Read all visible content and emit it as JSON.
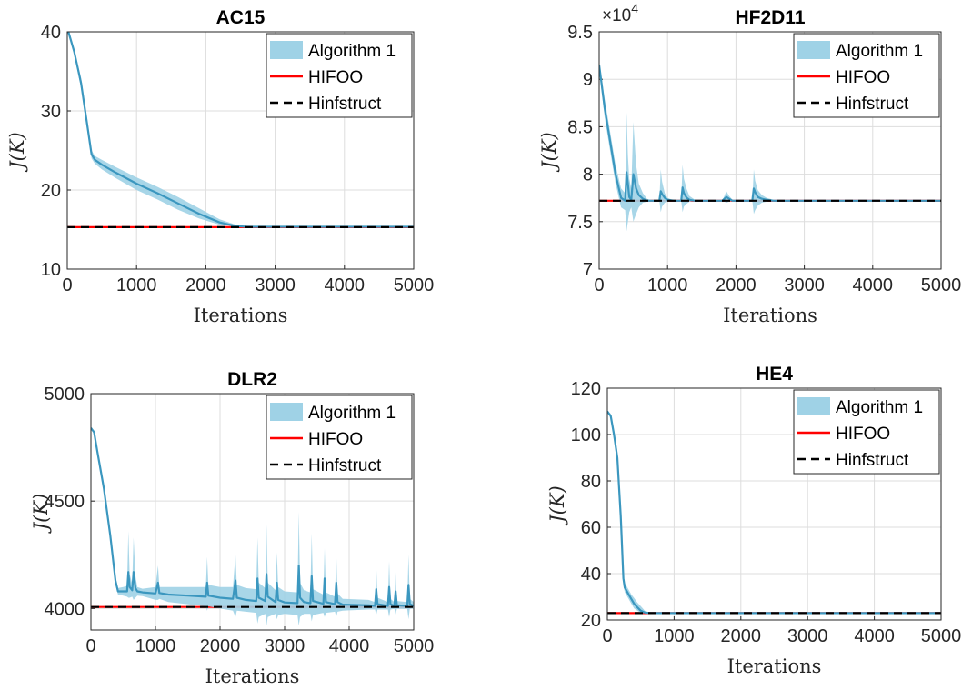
{
  "colors": {
    "band": "#9fd2e6",
    "mean": "#3b97bf",
    "hifoo": "#ff0000",
    "hinfstruct": "#000000",
    "grid": "#dddddd",
    "axis": "#262626"
  },
  "chart_data": [
    {
      "id": "ac15",
      "type": "line",
      "title": "AC15",
      "xlabel": "Iterations",
      "ylabel": "J(K)",
      "xlim": [
        0,
        5000
      ],
      "ylim": [
        10,
        40
      ],
      "xticks": [
        "0",
        "1000",
        "2000",
        "3000",
        "4000",
        "5000"
      ],
      "yticks": [
        "10",
        "20",
        "30",
        "40"
      ],
      "grid": true,
      "legend_position": "top-right",
      "multiplier": "",
      "series": [
        {
          "name": "Algorithm 1",
          "style": "mean-with-band",
          "x": [
            0,
            100,
            200,
            300,
            350,
            400,
            500,
            700,
            1000,
            1300,
            1600,
            1900,
            2200,
            2400,
            2500,
            2600,
            3000,
            4000,
            5000
          ],
          "y": [
            40.5,
            37.5,
            33.5,
            27.5,
            24.5,
            23.8,
            23.2,
            22.2,
            20.8,
            19.6,
            18.3,
            17.0,
            15.9,
            15.5,
            15.4,
            15.35,
            15.35,
            15.35,
            15.35
          ],
          "lower": [
            40.5,
            37.2,
            32.8,
            26.8,
            24.0,
            23.3,
            22.6,
            21.5,
            20.0,
            18.8,
            17.5,
            16.4,
            15.6,
            15.4,
            15.35,
            15.35,
            15.35,
            15.35,
            15.35
          ],
          "upper": [
            40.5,
            37.8,
            34.2,
            28.2,
            25.0,
            24.3,
            23.8,
            22.9,
            21.6,
            20.4,
            19.1,
            17.7,
            16.3,
            15.7,
            15.45,
            15.35,
            15.35,
            15.35,
            15.35
          ]
        },
        {
          "name": "HIFOO",
          "style": "solid",
          "y": 15.3
        },
        {
          "name": "Hinfstruct",
          "style": "dashed",
          "y": 15.3
        }
      ]
    },
    {
      "id": "hf2d11",
      "type": "line",
      "title": "HF2D11",
      "xlabel": "Iterations",
      "ylabel": "J(K)",
      "xlim": [
        0,
        5000
      ],
      "ylim": [
        7,
        9.5
      ],
      "xticks": [
        "0",
        "1000",
        "2000",
        "3000",
        "4000",
        "5000"
      ],
      "yticks": [
        "7",
        "7.5",
        "8",
        "8.5",
        "9",
        "9.5"
      ],
      "grid": true,
      "legend_position": "top-right",
      "multiplier": "×10",
      "multiplier_exp": "4",
      "series": [
        {
          "name": "Algorithm 1",
          "style": "mean-with-band",
          "x": [
            0,
            80,
            160,
            240,
            320,
            380,
            400,
            420,
            440,
            470,
            500,
            540,
            580,
            640,
            700,
            800,
            880,
            900,
            920,
            960,
            1000,
            1100,
            1150,
            1200,
            1220,
            1240,
            1280,
            1320,
            1400,
            1500,
            1800,
            1860,
            1900,
            1950,
            2200,
            2240,
            2260,
            2280,
            2320,
            2380,
            2450,
            2550,
            2700,
            5000
          ],
          "y": [
            9.15,
            8.7,
            8.35,
            8.0,
            7.75,
            7.72,
            8.02,
            7.9,
            7.76,
            7.73,
            8.0,
            7.85,
            7.78,
            7.74,
            7.72,
            7.72,
            7.72,
            7.82,
            7.79,
            7.75,
            7.73,
            7.72,
            7.72,
            7.72,
            7.86,
            7.8,
            7.75,
            7.73,
            7.72,
            7.72,
            7.72,
            7.76,
            7.74,
            7.72,
            7.72,
            7.72,
            7.85,
            7.81,
            7.76,
            7.74,
            7.73,
            7.72,
            7.72,
            7.72
          ],
          "lower": [
            9.1,
            8.6,
            8.25,
            7.9,
            7.65,
            7.62,
            7.4,
            7.5,
            7.6,
            7.65,
            7.5,
            7.58,
            7.65,
            7.7,
            7.71,
            7.72,
            7.72,
            7.6,
            7.66,
            7.7,
            7.71,
            7.72,
            7.72,
            7.72,
            7.6,
            7.66,
            7.69,
            7.71,
            7.72,
            7.72,
            7.72,
            7.7,
            7.71,
            7.72,
            7.72,
            7.72,
            7.58,
            7.62,
            7.67,
            7.7,
            7.71,
            7.72,
            7.72,
            7.72
          ],
          "upper": [
            9.2,
            8.8,
            8.45,
            8.1,
            7.85,
            7.8,
            8.65,
            8.2,
            7.95,
            7.85,
            8.55,
            8.1,
            7.9,
            7.8,
            7.74,
            7.72,
            7.72,
            8.05,
            7.92,
            7.8,
            7.75,
            7.72,
            7.72,
            7.72,
            8.1,
            7.95,
            7.84,
            7.77,
            7.73,
            7.72,
            7.72,
            7.82,
            7.77,
            7.73,
            7.72,
            7.72,
            8.05,
            7.93,
            7.83,
            7.78,
            7.75,
            7.73,
            7.72,
            7.72
          ]
        },
        {
          "name": "HIFOO",
          "style": "solid",
          "y": 7.72
        },
        {
          "name": "Hinfstruct",
          "style": "dashed",
          "y": 7.72
        }
      ]
    },
    {
      "id": "dlr2",
      "type": "line",
      "title": "DLR2",
      "xlabel": "Iterations",
      "ylabel": "J(K)",
      "xlim": [
        0,
        5000
      ],
      "ylim": [
        3900,
        5000
      ],
      "xticks": [
        "0",
        "1000",
        "2000",
        "3000",
        "4000",
        "5000"
      ],
      "yticks": [
        "4000",
        "4500",
        "5000"
      ],
      "ytick_values": [
        4000,
        4500,
        5000
      ],
      "grid": true,
      "legend_position": "top-right",
      "multiplier": "",
      "series": [
        {
          "name": "Algorithm 1",
          "style": "mean-with-band",
          "x": [
            0,
            50,
            100,
            200,
            300,
            380,
            420,
            500,
            560,
            580,
            600,
            640,
            660,
            690,
            720,
            800,
            1000,
            1040,
            1060,
            1200,
            1500,
            1780,
            1800,
            1820,
            2000,
            2200,
            2240,
            2260,
            2400,
            2560,
            2580,
            2600,
            2700,
            2720,
            2740,
            2860,
            2880,
            2900,
            3000,
            3200,
            3220,
            3240,
            3300,
            3400,
            3420,
            3440,
            3600,
            3620,
            3640,
            3780,
            3800,
            3820,
            3900,
            4300,
            4400,
            4420,
            4440,
            4600,
            4620,
            4640,
            4700,
            4720,
            4740,
            4900,
            4920,
            4940,
            5000
          ],
          "y": [
            4840,
            4820,
            4730,
            4560,
            4340,
            4130,
            4080,
            4080,
            4080,
            4170,
            4100,
            4085,
            4170,
            4095,
            4080,
            4075,
            4070,
            4120,
            4072,
            4065,
            4060,
            4055,
            4120,
            4060,
            4050,
            4045,
            4130,
            4050,
            4040,
            4035,
            4140,
            4050,
            4035,
            4160,
            4055,
            4030,
            4120,
            4040,
            4028,
            4025,
            4200,
            4050,
            4030,
            4025,
            4150,
            4035,
            4022,
            4140,
            4030,
            4020,
            4120,
            4030,
            4018,
            4015,
            4012,
            4090,
            4020,
            4012,
            4100,
            4020,
            4012,
            4080,
            4015,
            4012,
            4110,
            4020,
            4012
          ],
          "lower": [
            4840,
            4810,
            4715,
            4540,
            4320,
            4110,
            4065,
            4060,
            4055,
            4050,
            4050,
            4055,
            4040,
            4050,
            4060,
            4058,
            4040,
            4040,
            4045,
            4030,
            4020,
            4010,
            3990,
            4010,
            4000,
            3990,
            3960,
            3990,
            3985,
            3980,
            3930,
            3960,
            3975,
            3920,
            3960,
            3975,
            3950,
            3970,
            3975,
            3970,
            3920,
            3960,
            3975,
            3975,
            3940,
            3970,
            3980,
            3960,
            3980,
            3985,
            3960,
            3985,
            3990,
            3995,
            3995,
            3970,
            3995,
            3995,
            3960,
            3995,
            3998,
            3970,
            3998,
            3998,
            3950,
            3998,
            4000
          ],
          "upper": [
            4840,
            4830,
            4745,
            4580,
            4360,
            4150,
            4095,
            4100,
            4105,
            4360,
            4160,
            4115,
            4330,
            4150,
            4100,
            4092,
            4100,
            4200,
            4100,
            4100,
            4100,
            4100,
            4240,
            4110,
            4100,
            4100,
            4250,
            4110,
            4095,
            4090,
            4330,
            4120,
            4095,
            4390,
            4120,
            4085,
            4260,
            4100,
            4080,
            4075,
            4450,
            4120,
            4085,
            4075,
            4350,
            4090,
            4065,
            4280,
            4075,
            4055,
            4260,
            4070,
            4045,
            4040,
            4030,
            4200,
            4050,
            4030,
            4220,
            4045,
            4030,
            4180,
            4035,
            4030,
            4250,
            4045,
            4030
          ]
        },
        {
          "name": "HIFOO",
          "style": "solid",
          "y": 4007
        },
        {
          "name": "Hinfstruct",
          "style": "dashed",
          "y": 4007
        }
      ]
    },
    {
      "id": "he4",
      "type": "line",
      "title": "HE4",
      "xlabel": "Iterations",
      "ylabel": "J(K)",
      "xlim": [
        0,
        5000
      ],
      "ylim": [
        20,
        120
      ],
      "xticks": [
        "0",
        "1000",
        "2000",
        "3000",
        "4000",
        "5000"
      ],
      "yticks": [
        "20",
        "40",
        "60",
        "80",
        "100",
        "120"
      ],
      "grid": true,
      "legend_position": "top-right",
      "multiplier": "",
      "series": [
        {
          "name": "Algorithm 1",
          "style": "mean-with-band",
          "x": [
            0,
            50,
            100,
            150,
            200,
            240,
            260,
            280,
            320,
            360,
            400,
            450,
            500,
            560,
            650,
            5000
          ],
          "y": [
            110,
            108,
            100,
            90,
            65,
            38,
            34,
            33,
            31,
            29,
            27,
            25.5,
            24,
            23.2,
            23,
            23
          ],
          "lower": [
            110,
            107,
            98,
            87,
            60,
            35,
            32,
            31,
            29,
            27,
            25,
            24,
            23,
            23,
            23,
            23
          ],
          "upper": [
            110,
            109,
            102,
            93,
            70,
            41,
            36,
            35,
            33,
            31,
            29.5,
            27.5,
            26,
            24,
            23,
            23
          ]
        },
        {
          "name": "HIFOO",
          "style": "solid",
          "y": 23
        },
        {
          "name": "Hinfstruct",
          "style": "dashed",
          "y": 23
        }
      ]
    }
  ]
}
